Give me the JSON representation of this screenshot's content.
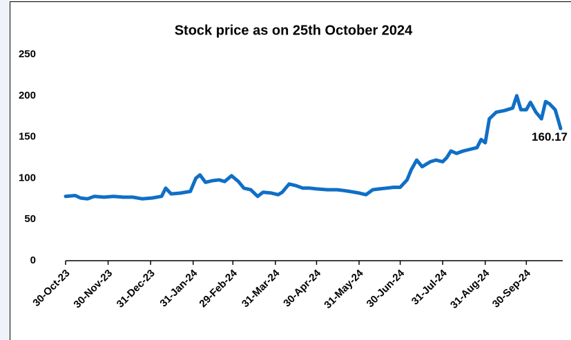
{
  "chart_data": {
    "type": "line",
    "title": "Stock price as on 25th October 2024",
    "x": [
      "2023-10-30",
      "2023-11-06",
      "2023-11-10",
      "2023-11-15",
      "2023-11-20",
      "2023-11-27",
      "2023-12-04",
      "2023-12-11",
      "2023-12-18",
      "2023-12-25",
      "2024-01-01",
      "2024-01-08",
      "2024-01-11",
      "2024-01-15",
      "2024-01-22",
      "2024-01-29",
      "2024-02-02",
      "2024-02-05",
      "2024-02-09",
      "2024-02-14",
      "2024-02-19",
      "2024-02-23",
      "2024-02-28",
      "2024-03-04",
      "2024-03-08",
      "2024-03-13",
      "2024-03-18",
      "2024-03-22",
      "2024-03-28",
      "2024-04-02",
      "2024-04-05",
      "2024-04-10",
      "2024-04-15",
      "2024-04-20",
      "2024-04-25",
      "2024-04-30",
      "2024-05-08",
      "2024-05-15",
      "2024-05-20",
      "2024-05-24",
      "2024-05-31",
      "2024-06-05",
      "2024-06-10",
      "2024-06-15",
      "2024-06-20",
      "2024-06-25",
      "2024-06-30",
      "2024-07-05",
      "2024-07-08",
      "2024-07-12",
      "2024-07-16",
      "2024-07-22",
      "2024-07-26",
      "2024-07-31",
      "2024-08-03",
      "2024-08-06",
      "2024-08-10",
      "2024-08-15",
      "2024-08-20",
      "2024-08-25",
      "2024-08-28",
      "2024-08-31",
      "2024-09-03",
      "2024-09-08",
      "2024-09-14",
      "2024-09-20",
      "2024-09-23",
      "2024-09-26",
      "2024-09-30",
      "2024-10-03",
      "2024-10-07",
      "2024-10-11",
      "2024-10-14",
      "2024-10-17",
      "2024-10-21",
      "2024-10-23",
      "2024-10-25"
    ],
    "series": [
      {
        "color": "#0f6fc6",
        "values": [
          78,
          79,
          76,
          75,
          78,
          77,
          78,
          77,
          77,
          75,
          76,
          78,
          88,
          81,
          82,
          84,
          100,
          104,
          95,
          97,
          98,
          96,
          103,
          96,
          88,
          86,
          78,
          83,
          82,
          80,
          83,
          93,
          91,
          88,
          88,
          87,
          86,
          86,
          85,
          84,
          82,
          80,
          86,
          87,
          88,
          89,
          89,
          98,
          110,
          122,
          114,
          120,
          122,
          120,
          125,
          133,
          130,
          133,
          135,
          137,
          147,
          143,
          172,
          180,
          182,
          185,
          200,
          183,
          183,
          192,
          180,
          172,
          193,
          190,
          183,
          172,
          160.17
        ]
      }
    ],
    "xlim": [
      "2023-10-30",
      "2024-10-25"
    ],
    "xticks": [
      {
        "value": "2023-10-30",
        "label": "30-Oct-23"
      },
      {
        "value": "2023-11-30",
        "label": "30-Nov-23"
      },
      {
        "value": "2023-12-31",
        "label": "31-Dec-23"
      },
      {
        "value": "2024-01-31",
        "label": "31-Jan-24"
      },
      {
        "value": "2024-02-29",
        "label": "29-Feb-24"
      },
      {
        "value": "2024-03-31",
        "label": "31-Mar-24"
      },
      {
        "value": "2024-04-30",
        "label": "30-Apr-24"
      },
      {
        "value": "2024-05-31",
        "label": "31-May-24"
      },
      {
        "value": "2024-06-30",
        "label": "30-Jun-24"
      },
      {
        "value": "2024-07-31",
        "label": "31-Jul-24"
      },
      {
        "value": "2024-08-31",
        "label": "31-Aug-24"
      },
      {
        "value": "2024-09-30",
        "label": "30-Sep-24"
      }
    ],
    "ylim": [
      0,
      250
    ],
    "yticks": [
      0,
      50,
      100,
      150,
      200,
      250
    ],
    "grid": false
  }
}
